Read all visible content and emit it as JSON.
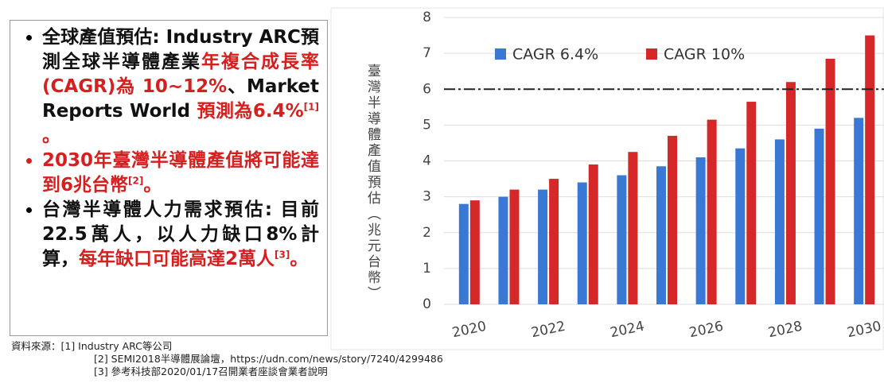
{
  "text_box": {
    "bullets": [
      [
        {
          "text": "全球產值預估: ",
          "color": "#111111"
        },
        {
          "text": "Industry ARC預測全球半導體產業",
          "color": "#111111"
        },
        {
          "text": "年複合成長率(CAGR)為 10~12%",
          "color": "#d62020"
        },
        {
          "text": "、Market Reports World ",
          "color": "#111111"
        },
        {
          "text": "預測為6.4%",
          "color": "#d62020"
        },
        {
          "text": "[1]",
          "color": "#d62020",
          "sup": true
        },
        {
          "text": " 。",
          "color": "#d62020"
        }
      ],
      [
        {
          "text": "2030年臺灣半導體產值將可能達到6兆台幣",
          "color": "#d62020"
        },
        {
          "text": "[2]",
          "color": "#d62020",
          "sup": true
        },
        {
          "text": "。",
          "color": "#d62020"
        }
      ],
      [
        {
          "text": "台灣半導體人力需求預估: 目前22.5萬人，以人力缺口8%計算，",
          "color": "#111111"
        },
        {
          "text": "每年缺口可能高達2萬人",
          "color": "#d62020"
        },
        {
          "text": "[3]",
          "color": "#d62020",
          "sup": true
        },
        {
          "text": "。",
          "color": "#d62020"
        }
      ]
    ]
  },
  "sources": [
    "資料來源：[1] Industry ARC等公司",
    "[2] SEMI2018半導體展論壇，https://udn.com/news/story/7240/4299486",
    "[3] 參考科技部2020/01/17召開業者座談會業者說明"
  ],
  "chart_data": {
    "type": "bar",
    "y_label": "臺灣半導體產值預估（兆元台幣）",
    "categories": [
      "2020",
      null,
      "2022",
      null,
      "2024",
      null,
      "2026",
      null,
      "2028",
      null,
      "2030"
    ],
    "series": [
      {
        "name": "CAGR 6.4%",
        "color": "#3a78d6",
        "values": [
          2.8,
          3.0,
          3.2,
          3.4,
          3.6,
          3.85,
          4.1,
          4.35,
          4.6,
          4.9,
          5.2
        ]
      },
      {
        "name": "CAGR 10%",
        "color": "#d62828",
        "values": [
          2.9,
          3.2,
          3.5,
          3.9,
          4.25,
          4.7,
          5.15,
          5.65,
          6.2,
          6.85,
          7.5
        ]
      }
    ],
    "reference_line": 6,
    "ylim": [
      0,
      8
    ],
    "yticks": [
      0,
      1,
      2,
      3,
      4,
      5,
      6,
      7,
      8
    ],
    "grid": true,
    "legend": "top"
  }
}
